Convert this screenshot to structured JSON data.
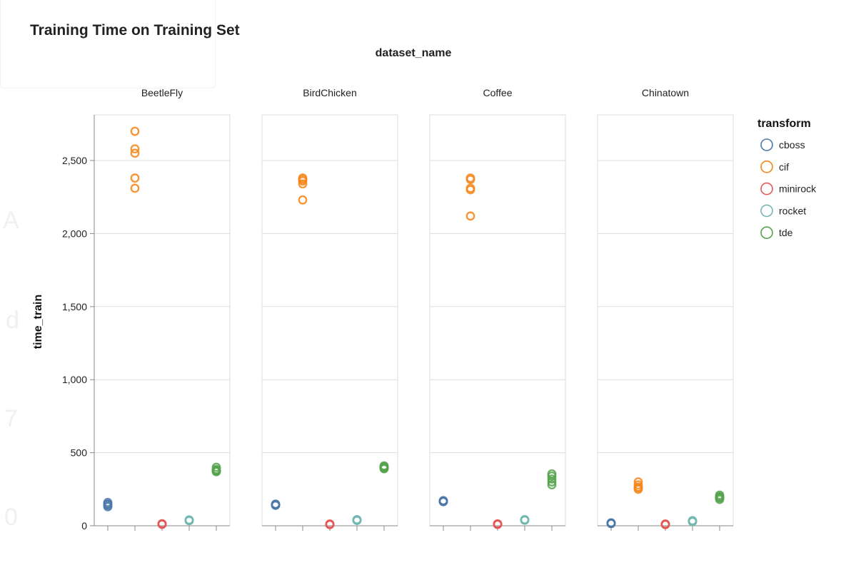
{
  "chart_data": {
    "type": "scatter",
    "title": "Training Time on Training Set",
    "facet_title": "dataset_name",
    "ylabel": "time_train",
    "ylim": [
      0,
      2800
    ],
    "y_ticks": [
      0,
      500,
      1000,
      1500,
      2000,
      2500
    ],
    "y_tick_labels": [
      "0",
      "500",
      "1,000",
      "1,500",
      "2,000",
      "2,500"
    ],
    "grid": true,
    "legend": {
      "title": "transform",
      "position": "right"
    },
    "series_order": [
      "cboss",
      "cif",
      "minirock",
      "rocket",
      "tde"
    ],
    "series_labels": [
      "cboss",
      "cif",
      "minirock",
      "rocket",
      "tde"
    ],
    "colors": [
      "#4c78a8",
      "#f58518",
      "#e45756",
      "#72b7b2",
      "#54a24b"
    ],
    "facets": [
      {
        "name": "BeetleFly",
        "series": [
          {
            "name": "cboss",
            "values": [
              130,
              140,
              150,
              160,
              145
            ]
          },
          {
            "name": "cif",
            "values": [
              2700,
              2580,
              2550,
              2380,
              2310
            ]
          },
          {
            "name": "minirock",
            "values": [
              10,
              12,
              14,
              11,
              13
            ]
          },
          {
            "name": "rocket",
            "values": [
              35,
              38,
              40,
              36,
              37
            ]
          },
          {
            "name": "tde",
            "values": [
              370,
              380,
              400,
              375,
              385
            ]
          }
        ]
      },
      {
        "name": "BirdChicken",
        "series": [
          {
            "name": "cboss",
            "values": [
              140,
              145,
              148,
              143,
              146
            ]
          },
          {
            "name": "cif",
            "values": [
              2380,
              2360,
              2340,
              2370,
              2230
            ]
          },
          {
            "name": "minirock",
            "values": [
              8,
              10,
              12,
              9,
              11
            ]
          },
          {
            "name": "rocket",
            "values": [
              36,
              40,
              42,
              38,
              39
            ]
          },
          {
            "name": "tde",
            "values": [
              390,
              400,
              410,
              395,
              405
            ]
          }
        ]
      },
      {
        "name": "Coffee",
        "series": [
          {
            "name": "cboss",
            "values": [
              165,
              170,
              168,
              172,
              166
            ]
          },
          {
            "name": "cif",
            "values": [
              2380,
              2370,
              2310,
              2300,
              2120
            ]
          },
          {
            "name": "minirock",
            "values": [
              10,
              12,
              11,
              13,
              9
            ]
          },
          {
            "name": "rocket",
            "values": [
              38,
              40,
              42,
              39,
              41
            ]
          },
          {
            "name": "tde",
            "values": [
              280,
              300,
              320,
              340,
              355
            ]
          }
        ]
      },
      {
        "name": "Chinatown",
        "series": [
          {
            "name": "cboss",
            "values": [
              15,
              18,
              20,
              17,
              16
            ]
          },
          {
            "name": "cif",
            "values": [
              250,
              265,
              280,
              300,
              260
            ]
          },
          {
            "name": "minirock",
            "values": [
              8,
              10,
              12,
              9,
              11
            ]
          },
          {
            "name": "rocket",
            "values": [
              28,
              32,
              35,
              30,
              33
            ]
          },
          {
            "name": "tde",
            "values": [
              180,
              190,
              200,
              210,
              195
            ]
          }
        ]
      }
    ]
  }
}
